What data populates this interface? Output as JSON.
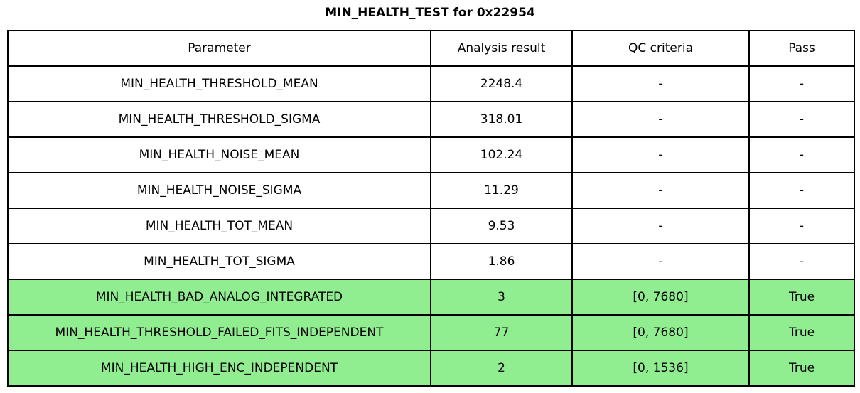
{
  "title": "MIN_HEALTH_TEST for 0x22954",
  "chart_data": {
    "type": "table",
    "title": "MIN_HEALTH_TEST for 0x22954",
    "columns": [
      "Parameter",
      "Analysis result",
      "QC criteria",
      "Pass"
    ],
    "rows": [
      [
        "MIN_HEALTH_THRESHOLD_MEAN",
        "2248.4",
        "-",
        "-"
      ],
      [
        "MIN_HEALTH_THRESHOLD_SIGMA",
        "318.01",
        "-",
        "-"
      ],
      [
        "MIN_HEALTH_NOISE_MEAN",
        "102.24",
        "-",
        "-"
      ],
      [
        "MIN_HEALTH_NOISE_SIGMA",
        "11.29",
        "-",
        "-"
      ],
      [
        "MIN_HEALTH_TOT_MEAN",
        "9.53",
        "-",
        "-"
      ],
      [
        "MIN_HEALTH_TOT_SIGMA",
        "1.86",
        "-",
        "-"
      ],
      [
        "MIN_HEALTH_BAD_ANALOG_INTEGRATED",
        "3",
        "[0, 7680]",
        "True"
      ],
      [
        "MIN_HEALTH_THRESHOLD_FAILED_FITS_INDEPENDENT",
        "77",
        "[0, 7680]",
        "True"
      ],
      [
        "MIN_HEALTH_HIGH_ENC_INDEPENDENT",
        "2",
        "[0, 1536]",
        "True"
      ]
    ],
    "highlighted_rows": [
      6,
      7,
      8
    ],
    "colors": {
      "pass_row_background": "#90EE90",
      "border": "#000000",
      "background": "#FFFFFF",
      "text": "#000000"
    }
  }
}
